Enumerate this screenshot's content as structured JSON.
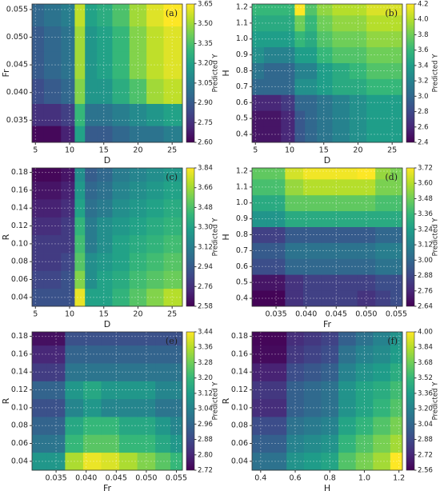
{
  "chart_data": [
    {
      "type": "contour",
      "panel_label": "(a)",
      "x_label": "D",
      "y_label": "Fr",
      "colorbar_label": "Predicted Y",
      "x": [
        5,
        7.5,
        10,
        11.5,
        13,
        15,
        17.5,
        20,
        22.5,
        25
      ],
      "y": [
        0.032,
        0.036,
        0.04,
        0.045,
        0.05,
        0.054
      ],
      "z": [
        [
          2.62,
          2.62,
          2.7,
          3.2,
          2.9,
          2.9,
          2.95,
          3.0,
          3.0,
          3.05
        ],
        [
          2.75,
          2.75,
          2.8,
          3.3,
          3.0,
          3.0,
          3.05,
          3.1,
          3.15,
          3.2
        ],
        [
          2.85,
          2.9,
          2.95,
          3.45,
          3.15,
          3.15,
          3.25,
          3.35,
          3.5,
          3.55
        ],
        [
          2.9,
          2.95,
          3.0,
          3.5,
          3.15,
          3.2,
          3.3,
          3.45,
          3.55,
          3.6
        ],
        [
          2.9,
          2.95,
          3.0,
          3.5,
          3.15,
          3.2,
          3.3,
          3.45,
          3.55,
          3.6
        ],
        [
          2.95,
          3.0,
          3.05,
          3.55,
          3.2,
          3.25,
          3.35,
          3.5,
          3.6,
          3.65
        ]
      ],
      "xlim": [
        4.5,
        26.5
      ],
      "xticks": [
        5,
        10,
        15,
        20,
        25
      ],
      "ylim": [
        0.031,
        0.056
      ],
      "yticks": [
        0.035,
        {
          "value": 0.04,
          "label": "0.040"
        },
        0.045,
        {
          "value": 0.05,
          "label": "0.050"
        },
        0.055
      ],
      "clim": [
        2.6,
        3.65
      ],
      "cticks": [
        {
          "value": 2.6,
          "label": "2.60"
        },
        2.75,
        {
          "value": 2.9,
          "label": "2.90"
        },
        3.05,
        {
          "value": 3.2,
          "label": "3.20"
        },
        3.35,
        {
          "value": 3.5,
          "label": "3.50"
        },
        3.65
      ],
      "colormap": [
        "#440154",
        "#482878",
        "#3e4989",
        "#31688e",
        "#26828e",
        "#1f9e89",
        "#35b779",
        "#6ece58",
        "#b5de2b",
        "#fde725"
      ],
      "grid": true
    },
    {
      "type": "contour",
      "panel_label": "(b)",
      "x_label": "D",
      "y_label": "H",
      "colorbar_label": "Predicted Y",
      "x": [
        5,
        7.5,
        10,
        11.5,
        13,
        15,
        17.5,
        20,
        22.5,
        25
      ],
      "y": [
        0.4,
        0.5,
        0.6,
        0.7,
        0.8,
        0.9,
        1.0,
        1.1,
        1.2
      ],
      "z": [
        [
          2.5,
          2.5,
          2.6,
          2.9,
          3.0,
          3.1,
          3.2,
          3.3,
          3.4,
          3.4
        ],
        [
          2.5,
          2.5,
          2.6,
          2.9,
          3.0,
          3.1,
          3.2,
          3.3,
          3.4,
          3.4
        ],
        [
          2.6,
          2.6,
          2.7,
          3.0,
          3.0,
          3.1,
          3.2,
          3.3,
          3.4,
          3.4
        ],
        [
          3.0,
          3.0,
          3.0,
          3.3,
          3.3,
          3.4,
          3.5,
          3.5,
          3.6,
          3.6
        ],
        [
          3.1,
          3.0,
          3.0,
          3.2,
          3.2,
          3.4,
          3.5,
          3.6,
          3.7,
          3.7
        ],
        [
          3.3,
          3.2,
          3.2,
          3.4,
          3.4,
          3.6,
          3.7,
          3.7,
          3.8,
          3.8
        ],
        [
          3.4,
          3.4,
          3.4,
          3.6,
          3.5,
          3.7,
          3.8,
          3.8,
          3.9,
          3.9
        ],
        [
          3.5,
          3.5,
          3.5,
          3.8,
          3.6,
          3.8,
          3.9,
          3.9,
          4.0,
          4.0
        ],
        [
          3.6,
          3.6,
          3.6,
          4.2,
          3.7,
          3.9,
          4.0,
          4.0,
          4.1,
          4.1
        ]
      ],
      "xlim": [
        4.5,
        26.5
      ],
      "xticks": [
        5,
        10,
        15,
        20,
        25
      ],
      "ylim": [
        0.35,
        1.22
      ],
      "yticks": [
        0.4,
        0.5,
        0.6,
        0.7,
        0.8,
        0.9,
        {
          "value": 1,
          "label": "1.0"
        },
        1.1,
        1.2
      ],
      "clim": [
        2.4,
        4.2
      ],
      "cticks": [
        2.4,
        2.6,
        2.8,
        {
          "value": 3,
          "label": "3.0"
        },
        3.2,
        3.4,
        3.6,
        3.8,
        {
          "value": 4,
          "label": "4.0"
        },
        4.2
      ],
      "colormap": [
        "#440154",
        "#482878",
        "#3e4989",
        "#31688e",
        "#26828e",
        "#1f9e89",
        "#35b779",
        "#6ece58",
        "#b5de2b",
        "#fde725"
      ],
      "grid": true
    },
    {
      "type": "contour",
      "panel_label": "(c)",
      "x_label": "D",
      "y_label": "R",
      "colorbar_label": "Predicted Y",
      "x": [
        5,
        7.5,
        10,
        11.5,
        13,
        15,
        17.5,
        20,
        22.5,
        25
      ],
      "y": [
        0.04,
        0.06,
        0.08,
        0.1,
        0.12,
        0.14,
        0.16,
        0.18
      ],
      "z": [
        [
          2.9,
          2.9,
          2.9,
          3.8,
          3.3,
          3.3,
          3.4,
          3.5,
          3.6,
          3.7
        ],
        [
          2.85,
          2.85,
          2.9,
          3.6,
          3.2,
          3.3,
          3.35,
          3.45,
          3.5,
          3.55
        ],
        [
          2.8,
          2.8,
          2.85,
          3.5,
          3.2,
          3.25,
          3.3,
          3.4,
          3.45,
          3.5
        ],
        [
          2.8,
          2.8,
          2.8,
          3.45,
          3.1,
          3.2,
          3.3,
          3.35,
          3.4,
          3.45
        ],
        [
          2.75,
          2.75,
          2.8,
          3.4,
          3.1,
          3.2,
          3.25,
          3.3,
          3.35,
          3.4
        ],
        [
          2.7,
          2.7,
          2.75,
          3.3,
          3.05,
          3.1,
          3.2,
          3.25,
          3.3,
          3.35
        ],
        [
          2.65,
          2.65,
          2.7,
          3.25,
          3.0,
          3.05,
          3.15,
          3.2,
          3.25,
          3.3
        ],
        [
          2.6,
          2.6,
          2.65,
          3.2,
          2.95,
          3.0,
          3.1,
          3.15,
          3.2,
          3.25
        ]
      ],
      "xlim": [
        4.5,
        26.5
      ],
      "xticks": [
        5,
        10,
        15,
        20,
        25
      ],
      "ylim": [
        0.03,
        0.185
      ],
      "yticks": [
        0.04,
        0.06,
        0.08,
        {
          "value": 0.1,
          "label": "0.10"
        },
        0.12,
        0.14,
        0.16,
        0.18
      ],
      "clim": [
        2.58,
        3.84
      ],
      "cticks": [
        2.58,
        2.76,
        2.94,
        3.12,
        {
          "value": 3.3,
          "label": "3.30"
        },
        3.48,
        3.66,
        3.84
      ],
      "colormap": [
        "#440154",
        "#482878",
        "#3e4989",
        "#31688e",
        "#26828e",
        "#1f9e89",
        "#35b779",
        "#6ece58",
        "#b5de2b",
        "#fde725"
      ],
      "grid": true
    },
    {
      "type": "contour",
      "panel_label": "(d)",
      "x_label": "Fr",
      "y_label": "H",
      "colorbar_label": "Predicted Y",
      "x": [
        0.032,
        0.035,
        0.038,
        0.041,
        0.044,
        0.047,
        0.05,
        0.053,
        0.055
      ],
      "y": [
        0.4,
        0.5,
        0.6,
        0.7,
        0.8,
        0.9,
        1.0,
        1.1,
        1.2
      ],
      "z": [
        [
          2.65,
          2.65,
          2.8,
          2.85,
          2.85,
          2.85,
          2.8,
          2.85,
          2.9
        ],
        [
          2.7,
          2.7,
          2.8,
          2.85,
          2.85,
          2.85,
          2.85,
          2.9,
          2.9
        ],
        [
          2.9,
          2.9,
          3.0,
          3.0,
          3.0,
          3.0,
          3.0,
          3.05,
          3.05
        ],
        [
          2.95,
          2.95,
          3.05,
          3.05,
          3.05,
          3.05,
          3.05,
          3.1,
          3.1
        ],
        [
          2.85,
          2.85,
          2.95,
          2.95,
          2.95,
          2.95,
          2.95,
          3.0,
          3.0
        ],
        [
          3.2,
          3.2,
          3.3,
          3.3,
          3.3,
          3.3,
          3.3,
          3.3,
          3.3
        ],
        [
          3.3,
          3.3,
          3.45,
          3.45,
          3.45,
          3.45,
          3.45,
          3.4,
          3.4
        ],
        [
          3.4,
          3.4,
          3.55,
          3.6,
          3.6,
          3.6,
          3.6,
          3.5,
          3.5
        ],
        [
          3.45,
          3.45,
          3.65,
          3.7,
          3.7,
          3.7,
          3.72,
          3.55,
          3.5
        ]
      ],
      "xlim": [
        0.031,
        0.056
      ],
      "xticks": [
        0.035,
        {
          "value": 0.04,
          "label": "0.040"
        },
        0.045,
        {
          "value": 0.05,
          "label": "0.050"
        },
        0.055
      ],
      "ylim": [
        0.35,
        1.22
      ],
      "yticks": [
        0.4,
        0.5,
        0.6,
        0.7,
        0.8,
        0.9,
        {
          "value": 1,
          "label": "1.0"
        },
        1.1,
        1.2
      ],
      "clim": [
        2.64,
        3.72
      ],
      "cticks": [
        2.64,
        2.76,
        2.88,
        {
          "value": 3,
          "label": "3.00"
        },
        3.12,
        3.24,
        3.36,
        3.48,
        {
          "value": 3.6,
          "label": "3.60"
        },
        3.72
      ],
      "colormap": [
        "#440154",
        "#482878",
        "#3e4989",
        "#31688e",
        "#26828e",
        "#1f9e89",
        "#35b779",
        "#6ece58",
        "#b5de2b",
        "#fde725"
      ],
      "grid": true
    },
    {
      "type": "contour",
      "panel_label": "(e)",
      "x_label": "Fr",
      "y_label": "R",
      "colorbar_label": "Predicted Y",
      "x": [
        0.032,
        0.035,
        0.038,
        0.041,
        0.044,
        0.047,
        0.05,
        0.053,
        0.055
      ],
      "y": [
        0.04,
        0.06,
        0.08,
        0.1,
        0.12,
        0.14,
        0.16,
        0.18
      ],
      "z": [
        [
          3.1,
          3.1,
          3.35,
          3.42,
          3.4,
          3.35,
          3.3,
          3.25,
          3.2
        ],
        [
          3.0,
          3.0,
          3.2,
          3.25,
          3.25,
          3.2,
          3.2,
          3.15,
          3.1
        ],
        [
          2.95,
          2.95,
          3.15,
          3.2,
          3.2,
          3.15,
          3.15,
          3.1,
          3.05
        ],
        [
          2.9,
          2.9,
          3.05,
          3.1,
          3.05,
          3.05,
          3.05,
          3.0,
          3.0
        ],
        [
          2.95,
          2.95,
          3.1,
          3.15,
          3.1,
          3.1,
          3.1,
          3.05,
          3.05
        ],
        [
          2.85,
          2.85,
          3.0,
          3.0,
          3.0,
          3.0,
          3.0,
          3.0,
          3.0
        ],
        [
          2.8,
          2.8,
          2.95,
          2.95,
          2.95,
          2.95,
          2.95,
          2.95,
          2.95
        ],
        [
          2.75,
          2.75,
          2.9,
          2.9,
          2.9,
          2.9,
          2.9,
          2.9,
          2.9
        ]
      ],
      "xlim": [
        0.031,
        0.056
      ],
      "xticks": [
        0.035,
        {
          "value": 0.04,
          "label": "0.040"
        },
        0.045,
        {
          "value": 0.05,
          "label": "0.050"
        },
        0.055
      ],
      "ylim": [
        0.03,
        0.185
      ],
      "yticks": [
        0.04,
        0.06,
        0.08,
        {
          "value": 0.1,
          "label": "0.10"
        },
        0.12,
        0.14,
        0.16,
        0.18
      ],
      "clim": [
        2.72,
        3.44
      ],
      "cticks": [
        2.72,
        {
          "value": 2.8,
          "label": "2.80"
        },
        2.88,
        2.96,
        3.04,
        3.12,
        {
          "value": 3.2,
          "label": "3.20"
        },
        3.28,
        3.36,
        3.44
      ],
      "colormap": [
        "#440154",
        "#482878",
        "#3e4989",
        "#31688e",
        "#26828e",
        "#1f9e89",
        "#35b779",
        "#6ece58",
        "#b5de2b",
        "#fde725"
      ],
      "grid": true
    },
    {
      "type": "contour",
      "panel_label": "(f)",
      "x_label": "H",
      "y_label": "R",
      "colorbar_label": "Predicted Y",
      "x": [
        0.4,
        0.5,
        0.6,
        0.7,
        0.8,
        0.9,
        1.0,
        1.1,
        1.2
      ],
      "y": [
        0.04,
        0.06,
        0.08,
        0.1,
        0.12,
        0.14,
        0.16,
        0.18
      ],
      "z": [
        [
          3.1,
          3.1,
          3.3,
          3.35,
          3.4,
          3.6,
          3.7,
          3.8,
          4.0
        ],
        [
          3.0,
          3.0,
          3.2,
          3.25,
          3.3,
          3.5,
          3.6,
          3.7,
          3.8
        ],
        [
          2.9,
          2.9,
          3.1,
          3.15,
          3.2,
          3.4,
          3.5,
          3.6,
          3.7
        ],
        [
          2.75,
          2.75,
          3.0,
          3.05,
          3.1,
          3.3,
          3.4,
          3.5,
          3.6
        ],
        [
          2.8,
          2.8,
          3.0,
          3.05,
          3.1,
          3.3,
          3.4,
          3.45,
          3.55
        ],
        [
          2.7,
          2.7,
          2.9,
          2.95,
          3.0,
          3.2,
          3.3,
          3.35,
          3.45
        ],
        [
          2.6,
          2.6,
          2.8,
          2.85,
          2.9,
          3.1,
          3.2,
          3.25,
          3.35
        ],
        [
          2.58,
          2.58,
          2.75,
          2.8,
          2.85,
          3.0,
          3.1,
          3.2,
          3.3
        ]
      ],
      "xlim": [
        0.35,
        1.22
      ],
      "xticks": [
        0.4,
        0.6,
        0.8,
        {
          "value": 1,
          "label": "1.0"
        },
        1.2
      ],
      "ylim": [
        0.03,
        0.185
      ],
      "yticks": [
        0.04,
        0.06,
        0.08,
        {
          "value": 0.1,
          "label": "0.10"
        },
        0.12,
        0.14,
        0.16,
        0.18
      ],
      "clim": [
        2.56,
        4.0
      ],
      "cticks": [
        2.56,
        2.72,
        2.88,
        3.04,
        {
          "value": 3.2,
          "label": "3.20"
        },
        3.36,
        3.52,
        3.68,
        3.84,
        {
          "value": 4,
          "label": "4.00"
        }
      ],
      "colormap": [
        "#440154",
        "#482878",
        "#3e4989",
        "#31688e",
        "#26828e",
        "#1f9e89",
        "#35b779",
        "#6ece58",
        "#b5de2b",
        "#fde725"
      ],
      "grid": true
    }
  ]
}
